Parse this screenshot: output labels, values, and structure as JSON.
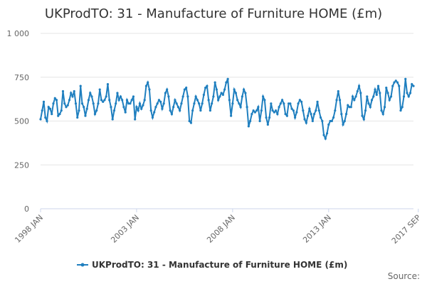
{
  "chart_data": {
    "type": "line",
    "title": "UKProdTO: 31 - Manufacture of Furniture HOME (£m)",
    "xlabel": "",
    "ylabel": "",
    "ylim": [
      0,
      1000
    ],
    "y_ticks": [
      {
        "value": 0,
        "label": "0"
      },
      {
        "value": 250,
        "label": "250"
      },
      {
        "value": 500,
        "label": "500"
      },
      {
        "value": 750,
        "label": "750"
      },
      {
        "value": 1000,
        "label": "1 000"
      }
    ],
    "x_ticks": [
      {
        "date": "1998-01",
        "label": "1998 JAN"
      },
      {
        "date": "2003-01",
        "label": "2003 JAN"
      },
      {
        "date": "2008-01",
        "label": "2008 JAN"
      },
      {
        "date": "2013-01",
        "label": "2013 JAN"
      },
      {
        "date": "2017-09",
        "label": "2017 SEP"
      }
    ],
    "grid": true,
    "legend_position": "bottom",
    "credits": "Source:",
    "series": [
      {
        "name": "UKProdTO: 31 - Manufacture of Furniture HOME (£m)",
        "color": "#1f7fbf",
        "start": "1998-01",
        "frequency": "monthly",
        "values": [
          510,
          560,
          610,
          520,
          500,
          580,
          570,
          540,
          600,
          630,
          620,
          530,
          540,
          560,
          670,
          600,
          580,
          590,
          620,
          660,
          640,
          670,
          600,
          520,
          560,
          700,
          600,
          580,
          530,
          570,
          620,
          660,
          640,
          600,
          540,
          560,
          600,
          680,
          620,
          610,
          620,
          640,
          710,
          620,
          580,
          510,
          560,
          600,
          660,
          620,
          640,
          620,
          580,
          550,
          620,
          600,
          600,
          620,
          640,
          510,
          580,
          560,
          600,
          570,
          590,
          620,
          700,
          720,
          680,
          560,
          520,
          550,
          580,
          600,
          620,
          610,
          570,
          600,
          660,
          680,
          640,
          560,
          540,
          580,
          620,
          600,
          580,
          560,
          600,
          640,
          680,
          690,
          640,
          500,
          490,
          560,
          600,
          640,
          620,
          600,
          560,
          600,
          650,
          690,
          700,
          620,
          560,
          600,
          640,
          720,
          680,
          620,
          640,
          660,
          650,
          680,
          720,
          740,
          620,
          530,
          600,
          680,
          660,
          620,
          600,
          580,
          640,
          680,
          660,
          580,
          470,
          500,
          540,
          560,
          550,
          560,
          580,
          500,
          560,
          640,
          620,
          520,
          480,
          520,
          600,
          560,
          550,
          560,
          540,
          580,
          600,
          620,
          600,
          540,
          530,
          600,
          600,
          570,
          560,
          520,
          550,
          600,
          620,
          610,
          560,
          510,
          490,
          530,
          570,
          540,
          500,
          540,
          560,
          610,
          560,
          520,
          500,
          420,
          400,
          430,
          480,
          500,
          500,
          520,
          560,
          620,
          670,
          620,
          540,
          480,
          500,
          540,
          590,
          580,
          580,
          640,
          620,
          640,
          670,
          700,
          660,
          530,
          510,
          560,
          640,
          600,
          580,
          620,
          640,
          680,
          650,
          700,
          660,
          560,
          540,
          580,
          690,
          660,
          620,
          640,
          700,
          720,
          730,
          720,
          700,
          560,
          580,
          640,
          740,
          660,
          640,
          660,
          710,
          700
        ]
      }
    ]
  }
}
